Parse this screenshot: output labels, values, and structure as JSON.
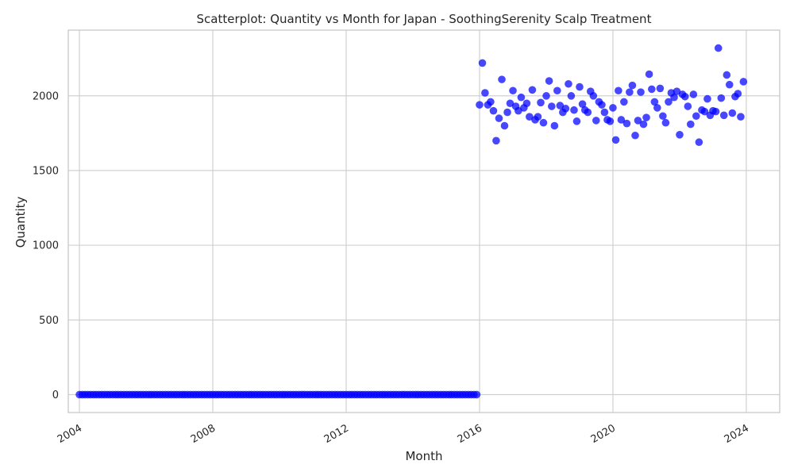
{
  "chart_data": {
    "type": "scatter",
    "title": "Scatterplot: Quantity vs Month for Japan - SoothingSerenity Scalp Treatment",
    "xlabel": "Month",
    "ylabel": "Quantity",
    "x_axis": "date",
    "xlim": [
      "2003-09-01",
      "2025-01-01"
    ],
    "ylim": [
      -120,
      2440
    ],
    "xticks": [
      "2004",
      "2008",
      "2012",
      "2016",
      "2020",
      "2024"
    ],
    "yticks": [
      "0",
      "500",
      "1000",
      "1500",
      "2000"
    ],
    "grid": true,
    "legend": "none",
    "marker_color": "#0000ff",
    "grid_color": "#cccccc",
    "series": [
      {
        "start": "2004-01",
        "frequency": "monthly",
        "values": [
          0,
          0,
          0,
          0,
          0,
          0,
          0,
          0,
          0,
          0,
          0,
          0,
          0,
          0,
          0,
          0,
          0,
          0,
          0,
          0,
          0,
          0,
          0,
          0,
          0,
          0,
          0,
          0,
          0,
          0,
          0,
          0,
          0,
          0,
          0,
          0,
          0,
          0,
          0,
          0,
          0,
          0,
          0,
          0,
          0,
          0,
          0,
          0,
          0,
          0,
          0,
          0,
          0,
          0,
          0,
          0,
          0,
          0,
          0,
          0,
          0,
          0,
          0,
          0,
          0,
          0,
          0,
          0,
          0,
          0,
          0,
          0,
          0,
          0,
          0,
          0,
          0,
          0,
          0,
          0,
          0,
          0,
          0,
          0,
          0,
          0,
          0,
          0,
          0,
          0,
          0,
          0,
          0,
          0,
          0,
          0,
          0,
          0,
          0,
          0,
          0,
          0,
          0,
          0,
          0,
          0,
          0,
          0,
          0,
          0,
          0,
          0,
          0,
          0,
          0,
          0,
          0,
          0,
          0,
          0,
          0,
          0,
          0,
          0,
          0,
          0,
          0,
          0,
          0,
          0,
          0,
          0,
          0,
          0,
          0,
          0,
          0,
          0,
          0,
          0,
          0,
          0,
          0,
          0,
          1940,
          2220,
          2020,
          1940,
          1960,
          1900,
          1700,
          1850,
          2110,
          1800,
          1890,
          1950,
          2035,
          1930,
          1900,
          1990,
          1920,
          1950,
          1860,
          2040,
          1840,
          1860,
          1955,
          1820,
          2000,
          2100,
          1930,
          1800,
          2035,
          1935,
          1890,
          1915,
          2080,
          2000,
          1905,
          1830,
          2060,
          1945,
          1905,
          1890,
          2030,
          2000,
          1835,
          1960,
          1940,
          1890,
          1840,
          1830,
          1920,
          1705,
          2035,
          1840,
          1960,
          1815,
          2025,
          2070,
          1735,
          1835,
          2025,
          1810,
          1855,
          2145,
          2045,
          1960,
          1920,
          2050,
          1865,
          1820,
          1960,
          2020,
          1990,
          2030,
          1740,
          2010,
          1995,
          1930,
          1810,
          2010,
          1865,
          1690,
          1905,
          1895,
          1980,
          1870,
          1900,
          1895,
          2320,
          1985,
          1870,
          2140,
          2075,
          1885,
          1995,
          2015,
          1860,
          2095
        ]
      }
    ]
  }
}
